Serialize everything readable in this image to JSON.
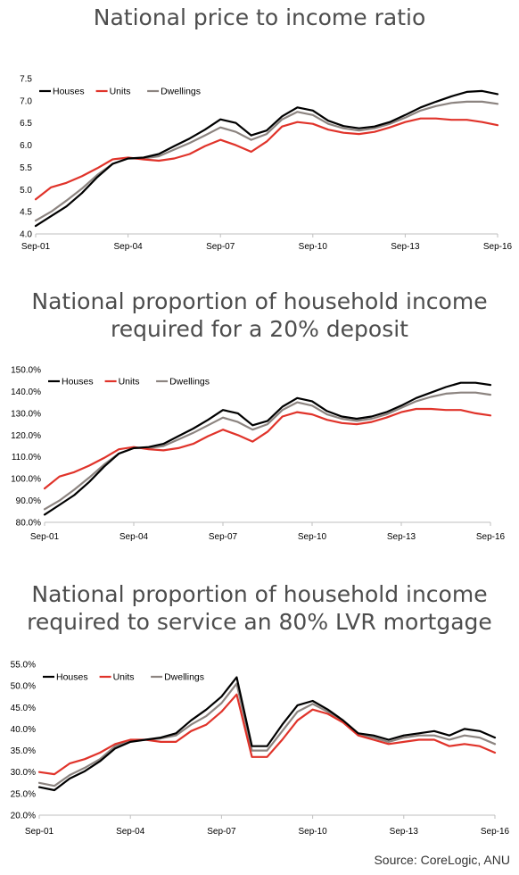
{
  "source": "Source: CoreLogic, ANU",
  "chart_data": [
    {
      "type": "line",
      "title_lines": [
        "National price to income ratio"
      ],
      "x_labels": [
        "Sep-01",
        "Sep-04",
        "Sep-07",
        "Sep-10",
        "Sep-13",
        "Sep-16"
      ],
      "x": [
        "Sep-01",
        "Mar-02",
        "Sep-02",
        "Mar-03",
        "Sep-03",
        "Mar-04",
        "Sep-04",
        "Mar-05",
        "Sep-05",
        "Mar-06",
        "Sep-06",
        "Mar-07",
        "Sep-07",
        "Mar-08",
        "Sep-08",
        "Mar-09",
        "Sep-09",
        "Mar-10",
        "Sep-10",
        "Mar-11",
        "Sep-11",
        "Mar-12",
        "Sep-12",
        "Mar-13",
        "Sep-13",
        "Mar-14",
        "Sep-14",
        "Mar-15",
        "Sep-15",
        "Mar-16",
        "Sep-16"
      ],
      "y_ticks": [
        "4.0",
        "4.5",
        "5.0",
        "5.5",
        "6.0",
        "6.5",
        "7.0",
        "7.5"
      ],
      "ylim": [
        4.0,
        7.5
      ],
      "legend_position": "top-left",
      "series": [
        {
          "name": "Houses",
          "color": "#000000",
          "values": [
            4.18,
            4.4,
            4.62,
            4.92,
            5.28,
            5.58,
            5.7,
            5.72,
            5.8,
            5.98,
            6.15,
            6.35,
            6.58,
            6.5,
            6.22,
            6.33,
            6.65,
            6.85,
            6.78,
            6.55,
            6.43,
            6.38,
            6.42,
            6.52,
            6.68,
            6.85,
            6.98,
            7.1,
            7.2,
            7.22,
            7.15
          ]
        },
        {
          "name": "Units",
          "color": "#e0332a",
          "values": [
            4.78,
            5.05,
            5.15,
            5.3,
            5.48,
            5.68,
            5.72,
            5.68,
            5.65,
            5.7,
            5.8,
            5.98,
            6.12,
            6.0,
            5.85,
            6.08,
            6.42,
            6.52,
            6.48,
            6.35,
            6.28,
            6.25,
            6.3,
            6.4,
            6.52,
            6.6,
            6.6,
            6.57,
            6.57,
            6.52,
            6.45
          ]
        },
        {
          "name": "Dwellings",
          "color": "#8c8480",
          "values": [
            4.3,
            4.5,
            4.75,
            5.02,
            5.33,
            5.58,
            5.7,
            5.7,
            5.75,
            5.9,
            6.05,
            6.22,
            6.4,
            6.3,
            6.12,
            6.25,
            6.58,
            6.75,
            6.68,
            6.48,
            6.38,
            6.33,
            6.38,
            6.48,
            6.62,
            6.78,
            6.88,
            6.95,
            6.98,
            6.98,
            6.93
          ]
        }
      ]
    },
    {
      "type": "line",
      "title_lines": [
        "National proportion of household income",
        "required for a 20% deposit"
      ],
      "x_labels": [
        "Sep-01",
        "Sep-04",
        "Sep-07",
        "Sep-10",
        "Sep-13",
        "Sep-16"
      ],
      "x": [
        "Sep-01",
        "Mar-02",
        "Sep-02",
        "Mar-03",
        "Sep-03",
        "Mar-04",
        "Sep-04",
        "Mar-05",
        "Sep-05",
        "Mar-06",
        "Sep-06",
        "Mar-07",
        "Sep-07",
        "Mar-08",
        "Sep-08",
        "Mar-09",
        "Sep-09",
        "Mar-10",
        "Sep-10",
        "Mar-11",
        "Sep-11",
        "Mar-12",
        "Sep-12",
        "Mar-13",
        "Sep-13",
        "Mar-14",
        "Sep-14",
        "Mar-15",
        "Sep-15",
        "Mar-16",
        "Sep-16"
      ],
      "y_ticks": [
        "80.0%",
        "90.0%",
        "100.0%",
        "110.0%",
        "120.0%",
        "130.0%",
        "140.0%",
        "150.0%"
      ],
      "ylim": [
        80,
        150
      ],
      "legend_position": "top-left",
      "series": [
        {
          "name": "Houses",
          "color": "#000000",
          "values": [
            83.5,
            88,
            92.5,
            98.5,
            105.5,
            111.5,
            114,
            114.5,
            116,
            119.5,
            123,
            127,
            131.5,
            130,
            124.5,
            126.5,
            133,
            137,
            135.5,
            131,
            128.5,
            127.5,
            128.5,
            130.5,
            133.5,
            137,
            139.5,
            142,
            144,
            144,
            143
          ]
        },
        {
          "name": "Units",
          "color": "#e0332a",
          "values": [
            95.5,
            101,
            103,
            106,
            109.5,
            113.5,
            114.5,
            113.5,
            113,
            114,
            116,
            119.5,
            122.5,
            120,
            117,
            121.5,
            128.5,
            130.5,
            129.5,
            127,
            125.5,
            125,
            126,
            128,
            130.5,
            132,
            132,
            131.5,
            131.5,
            130,
            129
          ]
        },
        {
          "name": "Dwellings",
          "color": "#8c8480",
          "values": [
            86,
            90,
            95,
            100.5,
            106.5,
            111.5,
            114,
            114,
            115,
            118,
            121,
            124.5,
            128,
            126,
            122.5,
            125,
            131.5,
            135,
            133.5,
            129.5,
            127.5,
            126.5,
            127.5,
            129.5,
            132.5,
            135.5,
            137.5,
            139,
            139.5,
            139.5,
            138.5
          ]
        }
      ]
    },
    {
      "type": "line",
      "title_lines": [
        "National proportion of household income",
        "required to service an 80% LVR mortgage"
      ],
      "x_labels": [
        "Sep-01",
        "Sep-04",
        "Sep-07",
        "Sep-10",
        "Sep-13",
        "Sep-16"
      ],
      "x": [
        "Sep-01",
        "Mar-02",
        "Sep-02",
        "Mar-03",
        "Sep-03",
        "Mar-04",
        "Sep-04",
        "Mar-05",
        "Sep-05",
        "Mar-06",
        "Sep-06",
        "Mar-07",
        "Sep-07",
        "Mar-08",
        "Sep-08",
        "Mar-09",
        "Sep-09",
        "Mar-10",
        "Sep-10",
        "Mar-11",
        "Sep-11",
        "Mar-12",
        "Sep-12",
        "Mar-13",
        "Sep-13",
        "Mar-14",
        "Sep-14",
        "Mar-15",
        "Sep-15",
        "Mar-16",
        "Sep-16"
      ],
      "y_ticks": [
        "20.0%",
        "25.0%",
        "30.0%",
        "35.0%",
        "40.0%",
        "45.0%",
        "50.0%",
        "55.0%"
      ],
      "ylim": [
        20,
        55
      ],
      "legend_position": "top-left",
      "series": [
        {
          "name": "Houses",
          "color": "#000000",
          "values": [
            26.5,
            25.8,
            28.5,
            30.2,
            32.5,
            35.5,
            37,
            37.5,
            38,
            39,
            42,
            44.5,
            47.5,
            52,
            36,
            36,
            41,
            45.5,
            46.5,
            44.5,
            42,
            39,
            38.5,
            37.5,
            38.5,
            39,
            39.5,
            38.5,
            40,
            39.5,
            38
          ]
        },
        {
          "name": "Units",
          "color": "#e0332a",
          "values": [
            30,
            29.5,
            32,
            33,
            34.5,
            36.5,
            37.5,
            37.5,
            37,
            37,
            39.5,
            41,
            44,
            48,
            33.5,
            33.5,
            37.5,
            42,
            44.5,
            43.5,
            41.5,
            38.5,
            37.5,
            36.5,
            37,
            37.5,
            37.5,
            36,
            36.5,
            36,
            34.5
          ]
        },
        {
          "name": "Dwellings",
          "color": "#8c8480",
          "values": [
            27.5,
            26.8,
            29.3,
            31,
            33,
            36,
            37.2,
            37.5,
            37.8,
            38.5,
            41,
            43,
            46,
            50.5,
            35,
            35,
            39.5,
            44,
            45.8,
            44,
            41.8,
            38.8,
            38,
            37,
            38,
            38.5,
            38.5,
            37.5,
            38.5,
            38,
            36.5
          ]
        }
      ]
    }
  ]
}
